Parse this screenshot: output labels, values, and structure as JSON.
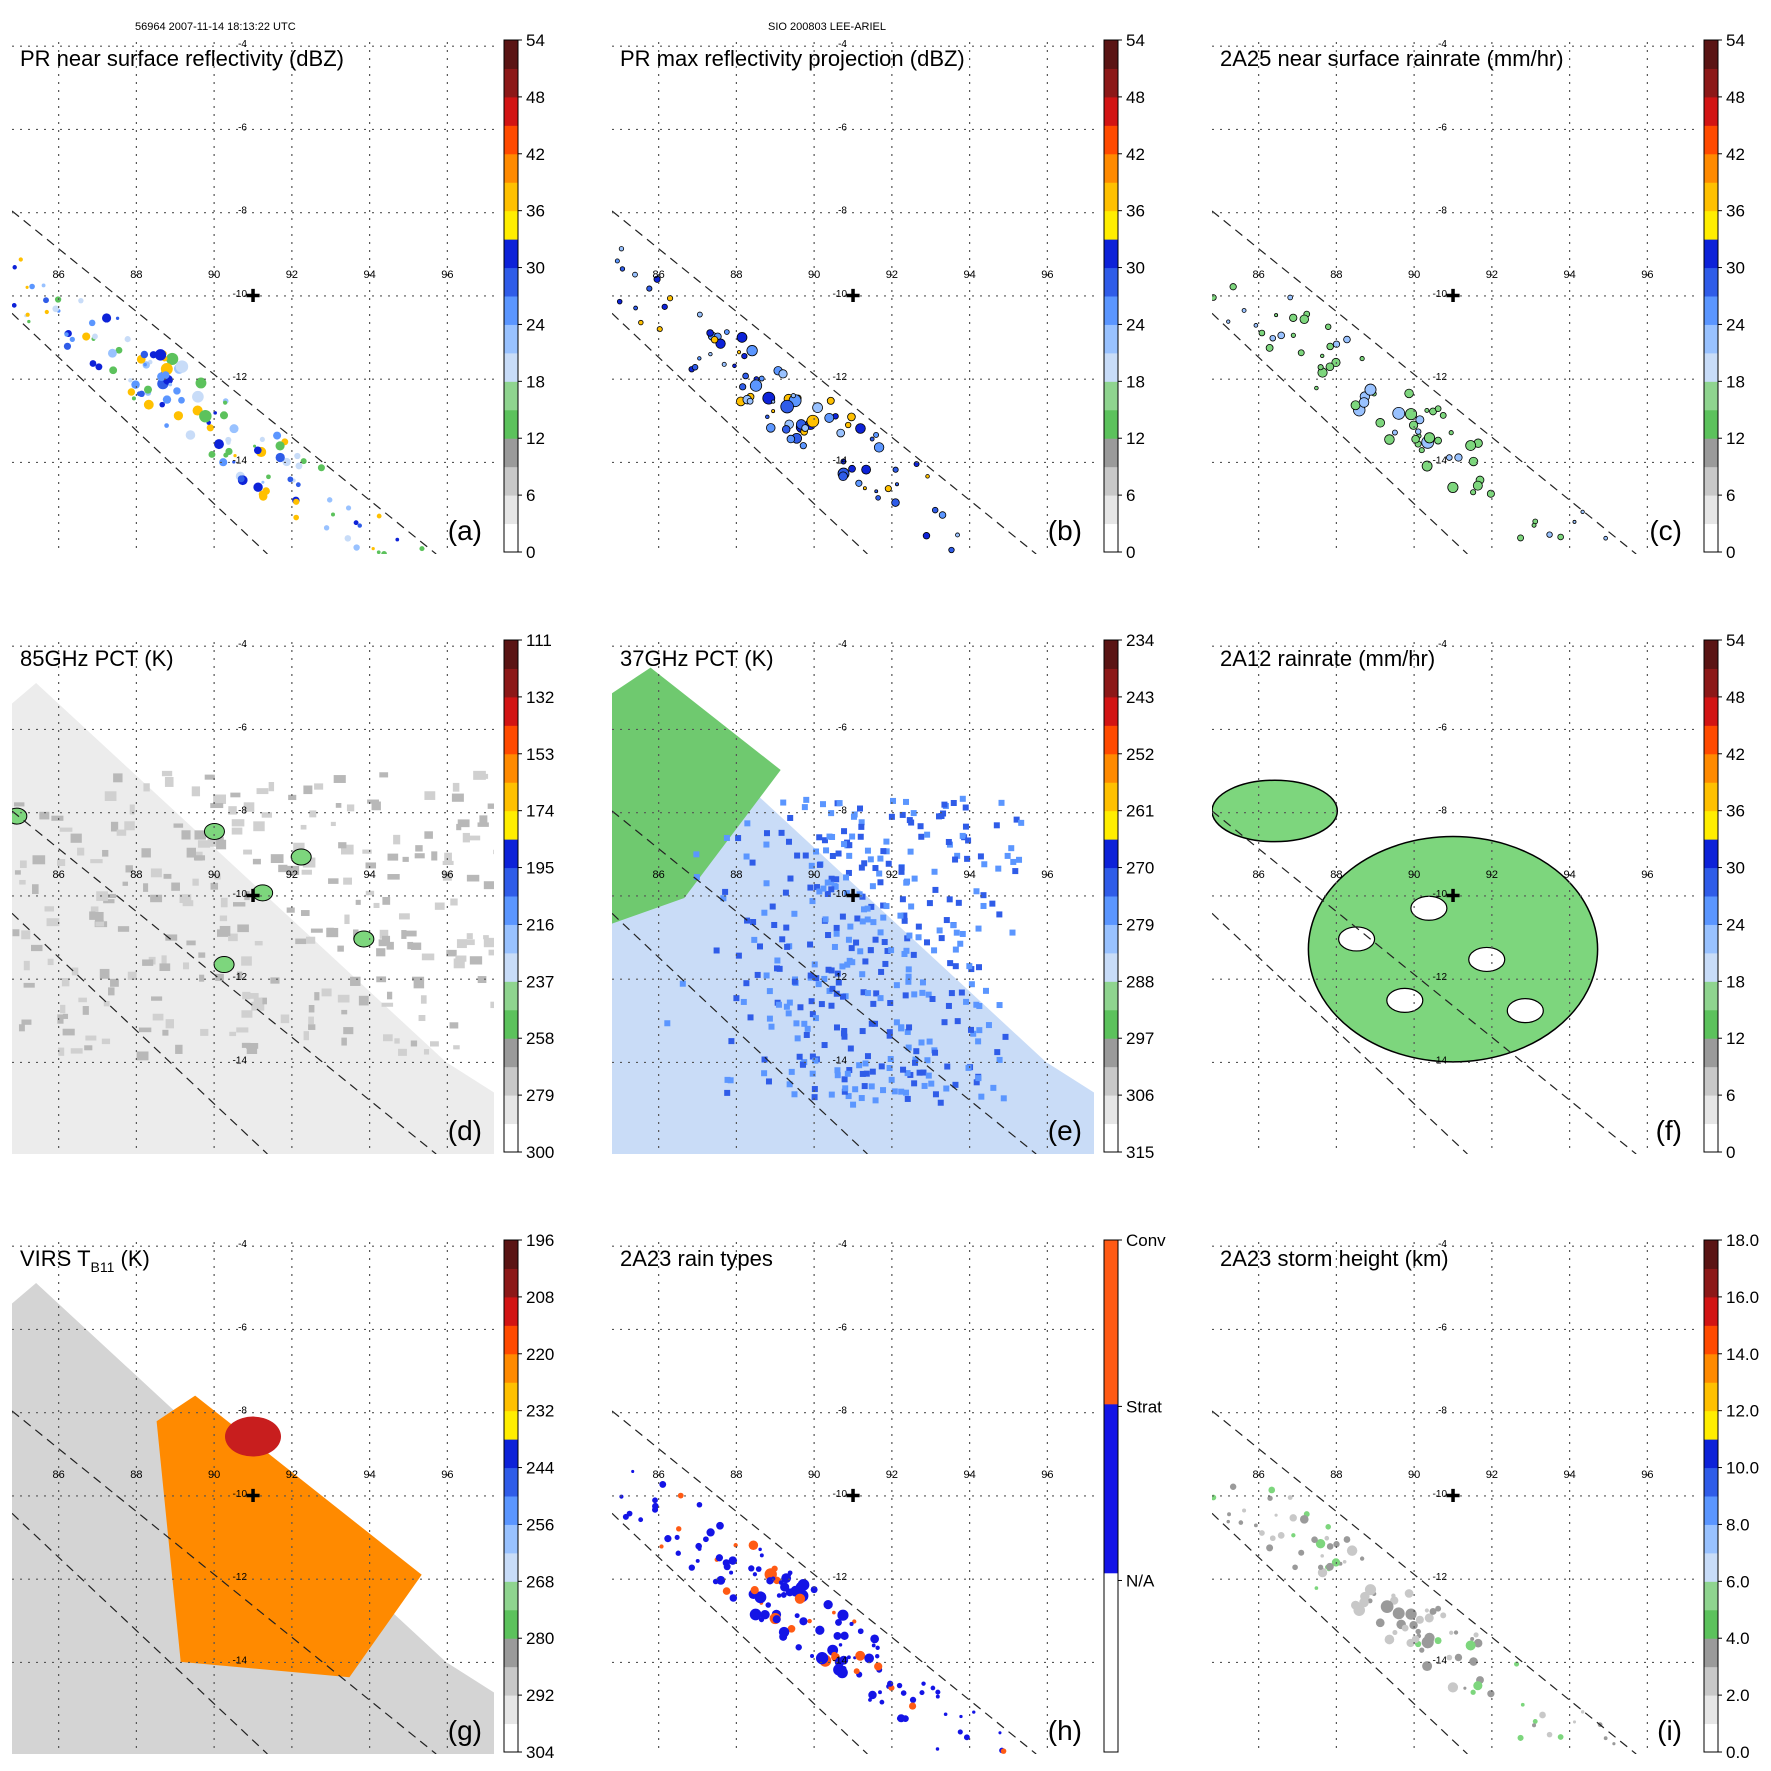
{
  "header": {
    "left": "56964 2007-11-14 18:13:22 UTC",
    "center": "SIO 200803 LEE-ARIEL"
  },
  "map": {
    "lon_ticks": [
      "86",
      "88",
      "90",
      "92",
      "94",
      "96"
    ],
    "lat_ticks": [
      "-4",
      "-6",
      "-8",
      "-10",
      "-12",
      "-14"
    ],
    "lon_range": [
      84.8,
      97.2
    ],
    "lat_range": [
      -3.9,
      -16.2
    ],
    "storm_center": {
      "lon": 91.0,
      "lat": -10.0,
      "symbol": "✚"
    }
  },
  "colors": {
    "palette": [
      "#ffffff",
      "#e6e6e6",
      "#c8c8c8",
      "#9a9a9a",
      "#5cc25c",
      "#8fd48f",
      "#c8dcf8",
      "#99c2ff",
      "#5b96ff",
      "#2f5ce8",
      "#0d22d8",
      "#ffee00",
      "#ffc000",
      "#ff8a00",
      "#ff4a00",
      "#d21414",
      "#8c1818",
      "#5a1414"
    ],
    "swath": "#3366cc",
    "green": "#7dd67d",
    "blue": "#3d6cf0",
    "orange": "#ff8c00",
    "red": "#c81e1e",
    "gray": "#9a9a9a"
  },
  "chart_data": [
    {
      "type": "heatmap",
      "panel": "a",
      "title": "PR near surface reflectivity (dBZ)",
      "letter": "(a)",
      "colorbar_ticks": [
        "0",
        "6",
        "12",
        "18",
        "24",
        "30",
        "36",
        "42",
        "48",
        "54"
      ]
    },
    {
      "type": "heatmap",
      "panel": "b",
      "title": "PR max reflectivity projection (dBZ)",
      "letter": "(b)",
      "colorbar_ticks": [
        "0",
        "6",
        "12",
        "18",
        "24",
        "30",
        "36",
        "42",
        "48",
        "54"
      ]
    },
    {
      "type": "heatmap",
      "panel": "c",
      "title": "2A25 near surface rainrate (mm/hr)",
      "letter": "(c)",
      "colorbar_ticks": [
        "0",
        "6",
        "12",
        "18",
        "24",
        "30",
        "36",
        "42",
        "48",
        "54"
      ]
    },
    {
      "type": "heatmap",
      "panel": "d",
      "title": "85GHz PCT (K)",
      "letter": "(d)",
      "colorbar_ticks": [
        "300",
        "279",
        "258",
        "237",
        "216",
        "195",
        "174",
        "153",
        "132",
        "111"
      ]
    },
    {
      "type": "heatmap",
      "panel": "e",
      "title": "37GHz PCT (K)",
      "letter": "(e)",
      "colorbar_ticks": [
        "315",
        "306",
        "297",
        "288",
        "279",
        "270",
        "261",
        "252",
        "243",
        "234"
      ]
    },
    {
      "type": "heatmap",
      "panel": "f",
      "title": "2A12 rainrate (mm/hr)",
      "letter": "(f)",
      "colorbar_ticks": [
        "0",
        "6",
        "12",
        "18",
        "24",
        "30",
        "36",
        "42",
        "48",
        "54"
      ]
    },
    {
      "type": "heatmap",
      "panel": "g",
      "title": "VIRS T",
      "title_sub": "B11",
      "title_suffix": " (K)",
      "letter": "(g)",
      "colorbar_ticks": [
        "304",
        "292",
        "280",
        "268",
        "256",
        "244",
        "232",
        "220",
        "208",
        "196"
      ]
    },
    {
      "type": "heatmap",
      "panel": "h",
      "title": "2A23 rain types",
      "letter": "(h)",
      "colorbar_ticks": [
        "N/A",
        "Strat",
        "Conv"
      ],
      "categorical": true
    },
    {
      "type": "heatmap",
      "panel": "i",
      "title": "2A23 storm height (km)",
      "letter": "(i)",
      "colorbar_ticks": [
        "0.0",
        "2.0",
        "4.0",
        "6.0",
        "8.0",
        "10.0",
        "12.0",
        "14.0",
        "16.0",
        "18.0"
      ]
    }
  ]
}
